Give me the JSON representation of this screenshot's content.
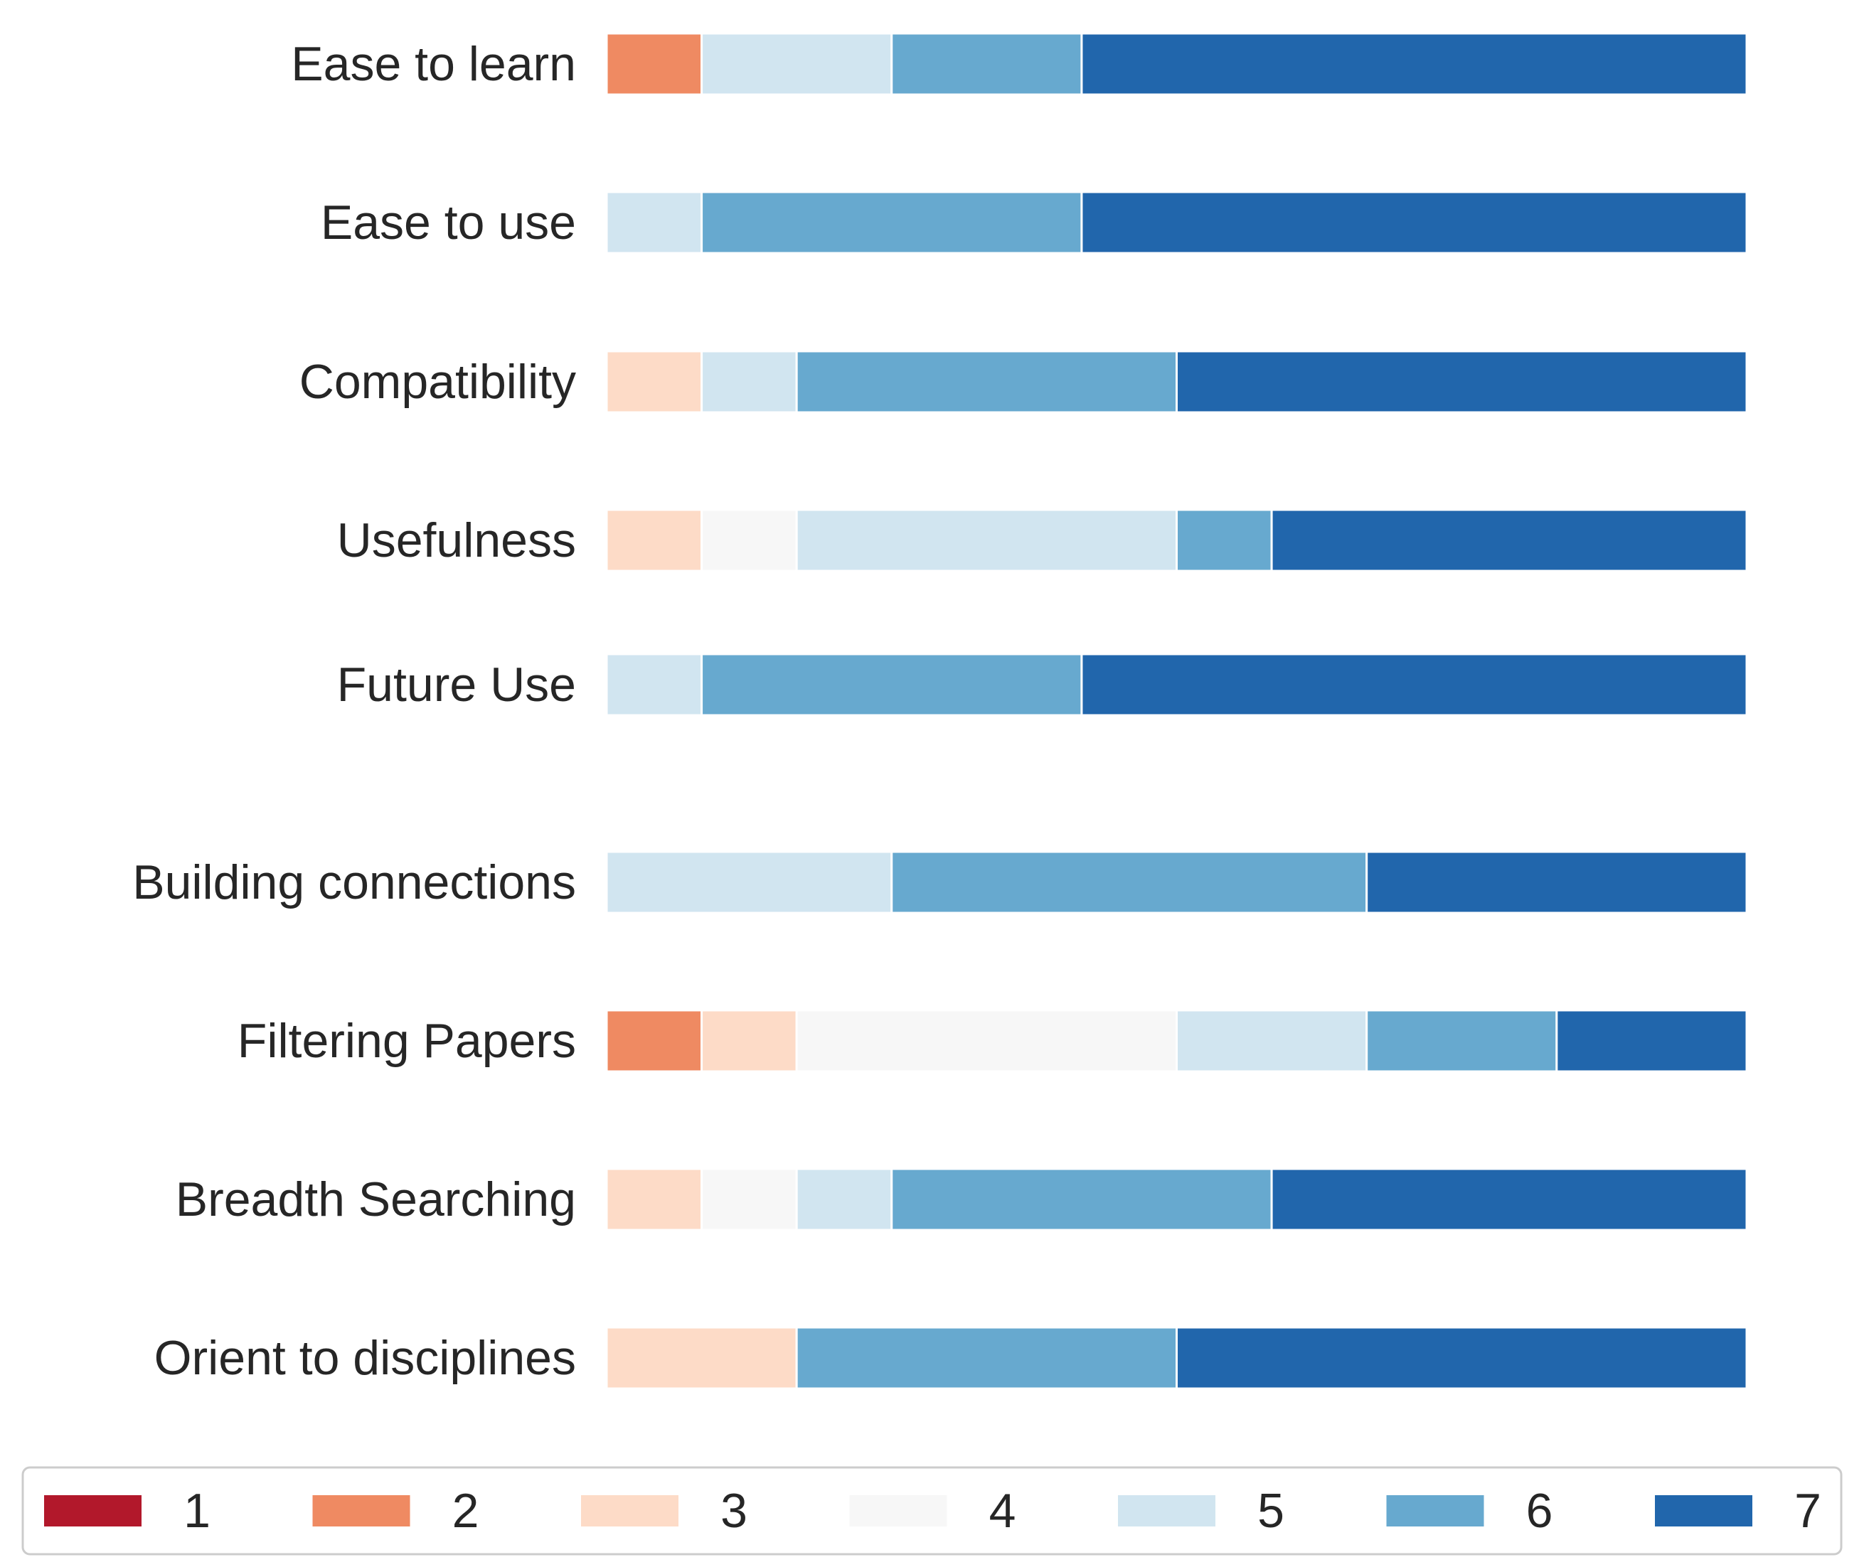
{
  "chart_data": {
    "type": "bar",
    "orientation": "horizontal",
    "stacked": true,
    "normalized": true,
    "categories": [
      "Ease to learn",
      "Ease to use",
      "Compatibility",
      "Usefulness",
      "Future Use",
      "Building connections",
      "Filtering Papers",
      "Breadth Searching",
      "Orient to disciplines"
    ],
    "series": [
      {
        "name": "1",
        "color": "#b2182b",
        "values": [
          0,
          0,
          0,
          0,
          0,
          0,
          0,
          0,
          0
        ]
      },
      {
        "name": "2",
        "color": "#ef8a62",
        "values": [
          1,
          0,
          0,
          0,
          0,
          0,
          1,
          0,
          0
        ]
      },
      {
        "name": "3",
        "color": "#fddbc7",
        "values": [
          0,
          0,
          1,
          1,
          0,
          0,
          1,
          1,
          2
        ]
      },
      {
        "name": "4",
        "color": "#f7f7f7",
        "values": [
          0,
          0,
          0,
          1,
          0,
          0,
          4,
          1,
          0
        ]
      },
      {
        "name": "5",
        "color": "#d1e5f0",
        "values": [
          2,
          1,
          1,
          4,
          1,
          3,
          2,
          1,
          0
        ]
      },
      {
        "name": "6",
        "color": "#67a9cf",
        "values": [
          2,
          4,
          4,
          1,
          4,
          5,
          2,
          4,
          4
        ]
      },
      {
        "name": "7",
        "color": "#2166ac",
        "values": [
          7,
          7,
          6,
          5,
          7,
          4,
          2,
          5,
          6
        ]
      }
    ],
    "xlim": [
      0,
      12
    ],
    "grid": false,
    "legend": {
      "position": "bottom",
      "entries": [
        "1",
        "2",
        "3",
        "4",
        "5",
        "6",
        "7"
      ]
    }
  }
}
